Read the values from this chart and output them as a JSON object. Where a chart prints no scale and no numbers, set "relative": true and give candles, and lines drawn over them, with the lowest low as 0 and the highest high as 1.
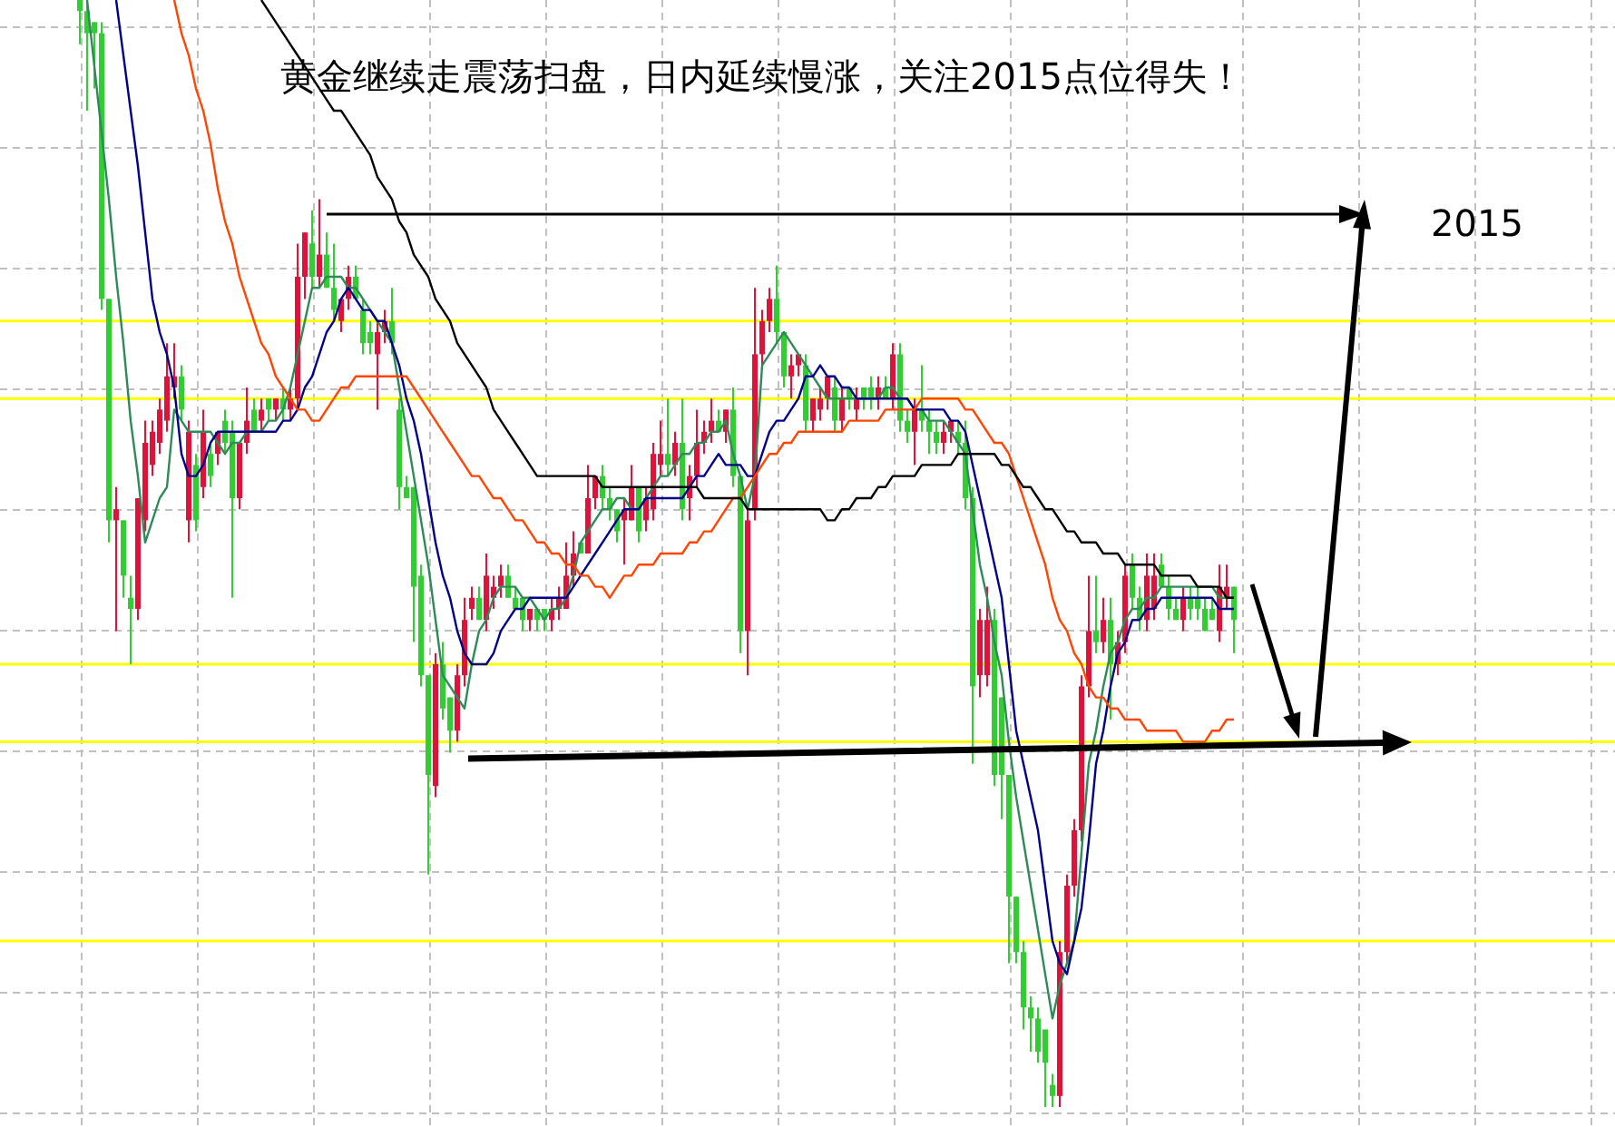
{
  "chart_data": {
    "type": "candlestick",
    "relative": true,
    "grid": true,
    "title": "黄金继续走震荡扫盘，日内延续慢涨，关注2015点位得失！",
    "annotations": [
      "2015"
    ],
    "colors": [
      "#32cd32",
      "#32cd32",
      "#32cd32",
      "#32cd32",
      "#32cd32",
      "#dc143c",
      "#32cd32",
      "#32cd32",
      "#dc143c",
      "#dc143c",
      "#dc143c",
      "#dc143c",
      "#dc143c",
      "#dc143c",
      "#32cd32",
      "#dc143c",
      "#32cd32",
      "#dc143c",
      "#32cd32",
      "#dc143c",
      "#32cd32",
      "#32cd32",
      "#dc143c",
      "#dc143c",
      "#32cd32",
      "#dc143c",
      "#32cd32",
      "#dc143c",
      "#32cd32",
      "#dc143c",
      "#dc143c",
      "#dc143c",
      "#32cd32",
      "#dc143c",
      "#32cd32",
      "#32cd32",
      "#dc143c",
      "#dc143c",
      "#32cd32",
      "#32cd32",
      "#32cd32",
      "#dc143c",
      "#dc143c",
      "#32cd32",
      "#32cd32",
      "#32cd32",
      "#32cd32",
      "#32cd32",
      "#32cd32",
      "#dc143c",
      "#32cd32",
      "#32cd32",
      "#dc143c",
      "#dc143c",
      "#dc143c",
      "#32cd32",
      "#dc143c",
      "#dc143c",
      "#dc143c",
      "#32cd32",
      "#32cd32",
      "#32cd32",
      "#dc143c",
      "#32cd32",
      "#32cd32",
      "#dc143c",
      "#dc143c",
      "#dc143c",
      "#dc143c",
      "#32cd32",
      "#dc143c",
      "#dc143c",
      "#32cd32",
      "#32cd32",
      "#32cd32",
      "#dc143c",
      "#dc143c",
      "#32cd32",
      "#dc143c",
      "#dc143c",
      "#dc143c",
      "#32cd32",
      "#dc143c",
      "#32cd32",
      "#dc143c",
      "#dc143c",
      "#dc143c",
      "#dc143c",
      "#32cd32",
      "#dc143c",
      "#32cd32",
      "#32cd32",
      "#dc143c",
      "#dc143c",
      "#dc143c",
      "#dc143c",
      "#32cd32",
      "#32cd32",
      "#dc143c",
      "#dc143c",
      "#32cd32",
      "#dc143c",
      "#dc143c",
      "#dc143c",
      "#32cd32",
      "#dc143c",
      "#32cd32",
      "#dc143c",
      "#32cd32",
      "#32cd32",
      "#dc143c",
      "#32cd32",
      "#dc143c",
      "#32cd32",
      "#32cd32",
      "#dc143c",
      "#32cd32",
      "#32cd32",
      "#32cd32",
      "#dc143c",
      "#dc143c",
      "#32cd32",
      "#32cd32",
      "#32cd32",
      "#dc143c",
      "#dc143c",
      "#32cd32",
      "#32cd32",
      "#32cd32",
      "#32cd32",
      "#32cd32",
      "#32cd32",
      "#32cd32",
      "#32cd32",
      "#32cd32",
      "#dc143c",
      "#dc143c",
      "#dc143c",
      "#dc143c",
      "#dc143c",
      "#32cd32",
      "#dc143c",
      "#32cd32",
      "#dc143c",
      "#dc143c",
      "#32cd32",
      "#32cd32",
      "#dc143c",
      "#dc143c",
      "#32cd32",
      "#32cd32",
      "#32cd32",
      "#dc143c",
      "#32cd32",
      "#32cd32",
      "#32cd32",
      "#32cd32",
      "#dc143c",
      "#dc143c",
      "#32cd32"
    ],
    "categories": [
      null,
      null,
      null,
      null,
      null,
      null,
      null,
      null,
      null,
      null,
      null,
      null,
      null,
      null,
      null,
      null,
      null,
      null,
      null,
      null,
      null,
      null,
      null,
      null,
      null,
      null,
      null,
      null,
      null,
      null,
      null,
      null,
      null,
      null,
      null,
      null,
      null,
      null,
      null,
      null,
      null,
      null,
      null,
      null,
      null,
      null,
      null,
      null,
      null,
      null,
      null,
      null,
      null,
      null,
      null,
      null,
      null,
      null,
      null,
      null,
      null,
      null,
      null,
      null,
      null,
      null,
      null,
      null,
      null,
      null,
      null,
      null,
      null,
      null,
      null,
      null,
      null,
      null,
      null,
      null,
      null,
      null,
      null,
      null,
      null,
      null,
      null,
      null,
      null,
      null,
      null,
      null,
      null,
      null,
      null,
      null,
      null,
      null,
      null,
      null,
      null,
      null,
      null,
      null,
      null,
      null,
      null,
      null,
      null,
      null,
      null,
      null,
      null,
      null,
      null,
      null,
      null,
      null,
      null,
      null,
      null,
      null,
      null,
      null,
      null,
      null,
      null,
      null,
      null,
      null,
      null,
      null,
      null,
      null,
      null,
      null,
      null,
      null,
      null,
      null,
      null,
      null,
      null,
      null,
      null,
      null,
      null,
      null,
      null,
      null,
      null,
      null,
      null,
      null,
      null,
      null,
      null,
      null,
      null,
      null
    ],
    "ohlc": [
      [
        1.0,
        1.0,
        0.96,
        0.99
      ],
      [
        0.99,
        1.0,
        0.9,
        0.97
      ],
      [
        0.98,
        0.98,
        0.92,
        0.97
      ],
      [
        0.97,
        0.98,
        0.72,
        0.73
      ],
      [
        0.73,
        0.73,
        0.51,
        0.53
      ],
      [
        0.53,
        0.56,
        0.43,
        0.54
      ],
      [
        0.53,
        0.53,
        0.46,
        0.48
      ],
      [
        0.46,
        0.48,
        0.4,
        0.45
      ],
      [
        0.45,
        0.55,
        0.44,
        0.55
      ],
      [
        0.53,
        0.62,
        0.52,
        0.6
      ],
      [
        0.58,
        0.62,
        0.57,
        0.61
      ],
      [
        0.6,
        0.64,
        0.59,
        0.63
      ],
      [
        0.62,
        0.69,
        0.61,
        0.66
      ],
      [
        0.65,
        0.69,
        0.64,
        0.66
      ],
      [
        0.66,
        0.67,
        0.62,
        0.63
      ],
      [
        0.53,
        0.62,
        0.51,
        0.61
      ],
      [
        0.58,
        0.59,
        0.52,
        0.53
      ],
      [
        0.56,
        0.63,
        0.55,
        0.61
      ],
      [
        0.59,
        0.6,
        0.56,
        0.57
      ],
      [
        0.59,
        0.61,
        0.58,
        0.61
      ],
      [
        0.62,
        0.63,
        0.59,
        0.6
      ],
      [
        0.61,
        0.62,
        0.46,
        0.55
      ],
      [
        0.55,
        0.6,
        0.54,
        0.6
      ],
      [
        0.6,
        0.65,
        0.59,
        0.62
      ],
      [
        0.63,
        0.64,
        0.61,
        0.61
      ],
      [
        0.62,
        0.64,
        0.61,
        0.63
      ],
      [
        0.64,
        0.64,
        0.62,
        0.63
      ],
      [
        0.63,
        0.64,
        0.62,
        0.64
      ],
      [
        0.64,
        0.65,
        0.62,
        0.63
      ],
      [
        0.63,
        0.65,
        0.62,
        0.64
      ],
      [
        0.64,
        0.78,
        0.63,
        0.75
      ],
      [
        0.75,
        0.79,
        0.73,
        0.79
      ],
      [
        0.78,
        0.81,
        0.74,
        0.75
      ],
      [
        0.75,
        0.82,
        0.74,
        0.77
      ],
      [
        0.77,
        0.79,
        0.74,
        0.74
      ],
      [
        0.74,
        0.78,
        0.71,
        0.72
      ],
      [
        0.71,
        0.73,
        0.7,
        0.73
      ],
      [
        0.73,
        0.76,
        0.72,
        0.75
      ],
      [
        0.75,
        0.76,
        0.73,
        0.73
      ],
      [
        0.72,
        0.73,
        0.68,
        0.69
      ],
      [
        0.7,
        0.71,
        0.68,
        0.69
      ],
      [
        0.68,
        0.71,
        0.63,
        0.7
      ],
      [
        0.7,
        0.72,
        0.69,
        0.71
      ],
      [
        0.71,
        0.74,
        0.68,
        0.69
      ],
      [
        0.63,
        0.64,
        0.54,
        0.56
      ],
      [
        0.56,
        0.57,
        0.55,
        0.55
      ],
      [
        0.56,
        0.56,
        0.42,
        0.47
      ],
      [
        0.48,
        0.49,
        0.38,
        0.39
      ],
      [
        0.39,
        0.39,
        0.21,
        0.3
      ],
      [
        0.29,
        0.41,
        0.28,
        0.4
      ],
      [
        0.4,
        0.42,
        0.35,
        0.36
      ],
      [
        0.37,
        0.37,
        0.32,
        0.34
      ],
      [
        0.34,
        0.4,
        0.33,
        0.39
      ],
      [
        0.39,
        0.46,
        0.38,
        0.44
      ],
      [
        0.45,
        0.47,
        0.44,
        0.46
      ],
      [
        0.46,
        0.47,
        0.44,
        0.44
      ],
      [
        0.44,
        0.5,
        0.43,
        0.48
      ],
      [
        0.46,
        0.48,
        0.45,
        0.47
      ],
      [
        0.47,
        0.49,
        0.46,
        0.48
      ],
      [
        0.48,
        0.49,
        0.46,
        0.46
      ],
      [
        0.46,
        0.47,
        0.45,
        0.45
      ],
      [
        0.46,
        0.46,
        0.43,
        0.44
      ],
      [
        0.44,
        0.45,
        0.43,
        0.45
      ],
      [
        0.45,
        0.45,
        0.43,
        0.44
      ],
      [
        0.45,
        0.45,
        0.43,
        0.44
      ],
      [
        0.44,
        0.46,
        0.43,
        0.45
      ],
      [
        0.45,
        0.47,
        0.44,
        0.46
      ],
      [
        0.45,
        0.51,
        0.45,
        0.48
      ],
      [
        0.48,
        0.52,
        0.47,
        0.5
      ],
      [
        0.51,
        0.51,
        0.5,
        0.5
      ],
      [
        0.5,
        0.58,
        0.5,
        0.55
      ],
      [
        0.55,
        0.57,
        0.54,
        0.57
      ],
      [
        0.57,
        0.58,
        0.54,
        0.55
      ],
      [
        0.55,
        0.56,
        0.53,
        0.54
      ],
      [
        0.54,
        0.54,
        0.51,
        0.52
      ],
      [
        0.53,
        0.55,
        0.49,
        0.54
      ],
      [
        0.53,
        0.58,
        0.53,
        0.56
      ],
      [
        0.56,
        0.56,
        0.51,
        0.52
      ],
      [
        0.53,
        0.56,
        0.52,
        0.55
      ],
      [
        0.54,
        0.6,
        0.53,
        0.59
      ],
      [
        0.58,
        0.62,
        0.57,
        0.59
      ],
      [
        0.59,
        0.64,
        0.57,
        0.58
      ],
      [
        0.58,
        0.61,
        0.57,
        0.6
      ],
      [
        0.6,
        0.64,
        0.53,
        0.54
      ],
      [
        0.55,
        0.58,
        0.53,
        0.57
      ],
      [
        0.57,
        0.63,
        0.56,
        0.6
      ],
      [
        0.6,
        0.62,
        0.59,
        0.61
      ],
      [
        0.61,
        0.64,
        0.6,
        0.62
      ],
      [
        0.62,
        0.63,
        0.61,
        0.61
      ],
      [
        0.61,
        0.63,
        0.6,
        0.63
      ],
      [
        0.63,
        0.65,
        0.56,
        0.57
      ],
      [
        0.57,
        0.57,
        0.41,
        0.43
      ],
      [
        0.43,
        0.54,
        0.39,
        0.53
      ],
      [
        0.54,
        0.74,
        0.53,
        0.68
      ],
      [
        0.68,
        0.72,
        0.67,
        0.71
      ],
      [
        0.71,
        0.74,
        0.7,
        0.73
      ],
      [
        0.73,
        0.76,
        0.69,
        0.7
      ],
      [
        0.7,
        0.7,
        0.65,
        0.66
      ],
      [
        0.66,
        0.68,
        0.64,
        0.67
      ],
      [
        0.67,
        0.68,
        0.66,
        0.68
      ],
      [
        0.67,
        0.68,
        0.61,
        0.62
      ],
      [
        0.62,
        0.64,
        0.61,
        0.64
      ],
      [
        0.63,
        0.65,
        0.62,
        0.64
      ],
      [
        0.64,
        0.66,
        0.63,
        0.66
      ],
      [
        0.65,
        0.66,
        0.61,
        0.62
      ],
      [
        0.62,
        0.65,
        0.61,
        0.64
      ],
      [
        0.65,
        0.65,
        0.63,
        0.64
      ],
      [
        0.63,
        0.65,
        0.62,
        0.64
      ],
      [
        0.65,
        0.65,
        0.63,
        0.64
      ],
      [
        0.65,
        0.66,
        0.63,
        0.64
      ],
      [
        0.64,
        0.66,
        0.63,
        0.65
      ],
      [
        0.65,
        0.66,
        0.64,
        0.64
      ],
      [
        0.64,
        0.69,
        0.63,
        0.68
      ],
      [
        0.68,
        0.69,
        0.61,
        0.62
      ],
      [
        0.62,
        0.63,
        0.6,
        0.61
      ],
      [
        0.61,
        0.64,
        0.58,
        0.63
      ],
      [
        0.63,
        0.67,
        0.61,
        0.62
      ],
      [
        0.62,
        0.63,
        0.59,
        0.61
      ],
      [
        0.61,
        0.62,
        0.59,
        0.6
      ],
      [
        0.6,
        0.62,
        0.59,
        0.61
      ],
      [
        0.61,
        0.62,
        0.6,
        0.62
      ],
      [
        0.61,
        0.62,
        0.59,
        0.6
      ],
      [
        0.6,
        0.62,
        0.54,
        0.55
      ],
      [
        0.55,
        0.56,
        0.31,
        0.38
      ],
      [
        0.39,
        0.45,
        0.37,
        0.44
      ],
      [
        0.39,
        0.47,
        0.38,
        0.44
      ],
      [
        0.44,
        0.45,
        0.29,
        0.3
      ],
      [
        0.37,
        0.37,
        0.26,
        0.3
      ],
      [
        0.3,
        0.3,
        0.13,
        0.19
      ],
      [
        0.19,
        0.19,
        0.13,
        0.14
      ],
      [
        0.14,
        0.15,
        0.07,
        0.09
      ],
      [
        0.09,
        0.1,
        0.05,
        0.08
      ],
      [
        0.08,
        0.09,
        0.04,
        0.05
      ],
      [
        0.07,
        0.07,
        0.0,
        0.04
      ],
      [
        0.02,
        0.03,
        0.0,
        0.01
      ],
      [
        0.01,
        0.15,
        0.0,
        0.14
      ],
      [
        0.14,
        0.21,
        0.13,
        0.2
      ],
      [
        0.2,
        0.26,
        0.19,
        0.25
      ],
      [
        0.25,
        0.39,
        0.24,
        0.38
      ],
      [
        0.38,
        0.48,
        0.37,
        0.43
      ],
      [
        0.43,
        0.48,
        0.41,
        0.42
      ],
      [
        0.42,
        0.46,
        0.41,
        0.44
      ],
      [
        0.44,
        0.46,
        0.35,
        0.4
      ],
      [
        0.4,
        0.43,
        0.39,
        0.42
      ],
      [
        0.42,
        0.49,
        0.41,
        0.48
      ],
      [
        0.49,
        0.5,
        0.45,
        0.46
      ],
      [
        0.46,
        0.47,
        0.43,
        0.44
      ],
      [
        0.44,
        0.5,
        0.43,
        0.48
      ],
      [
        0.45,
        0.5,
        0.44,
        0.48
      ],
      [
        0.49,
        0.5,
        0.47,
        0.47
      ],
      [
        0.47,
        0.48,
        0.44,
        0.45
      ],
      [
        0.45,
        0.46,
        0.44,
        0.44
      ],
      [
        0.44,
        0.47,
        0.43,
        0.46
      ],
      [
        0.46,
        0.47,
        0.44,
        0.45
      ],
      [
        0.46,
        0.47,
        0.44,
        0.45
      ],
      [
        0.45,
        0.46,
        0.43,
        0.43
      ],
      [
        0.45,
        0.46,
        0.44,
        0.44
      ],
      [
        0.43,
        0.49,
        0.42,
        0.47
      ],
      [
        0.46,
        0.49,
        0.45,
        0.47
      ],
      [
        0.47,
        0.47,
        0.41,
        0.44
      ]
    ],
    "series": [
      {
        "type": "line",
        "color": "#2e8b57",
        "values": [
          null,
          1.0,
          0.94,
          0.88,
          0.82,
          0.75,
          0.69,
          0.62,
          0.57,
          0.51,
          0.53,
          0.55,
          0.56,
          0.63,
          0.62,
          0.61,
          0.61,
          0.61,
          0.61,
          0.6,
          0.59,
          0.6,
          0.6,
          0.61,
          0.61,
          0.61,
          0.62,
          0.62,
          0.63,
          0.65,
          0.68,
          0.71,
          0.74,
          0.74,
          0.75,
          0.75,
          0.75,
          0.74,
          0.74,
          0.73,
          0.72,
          0.71,
          0.7,
          0.69,
          0.65,
          0.61,
          0.57,
          0.53,
          0.49,
          0.44,
          0.39,
          0.38,
          0.37,
          0.36,
          0.4,
          0.43,
          0.44,
          0.46,
          0.47,
          0.47,
          0.47,
          0.46,
          0.46,
          0.45,
          0.44,
          0.45,
          0.45,
          0.46,
          0.48,
          0.51,
          0.52,
          0.53,
          0.54,
          0.54,
          0.55,
          0.55,
          0.54,
          0.54,
          0.55,
          0.56,
          0.57,
          0.57,
          0.58,
          0.59,
          0.59,
          0.6,
          0.6,
          0.61,
          0.61,
          0.62,
          0.59,
          0.57,
          0.54,
          0.57,
          0.67,
          0.68,
          0.69,
          0.7,
          0.69,
          0.68,
          0.67,
          0.66,
          0.65,
          0.64,
          0.64,
          0.64,
          0.64,
          0.64,
          0.64,
          0.64,
          0.64,
          0.65,
          0.65,
          0.64,
          0.64,
          0.63,
          0.63,
          0.62,
          0.62,
          0.62,
          0.61,
          0.6,
          0.59,
          0.54,
          0.49,
          0.46,
          0.42,
          0.39,
          0.33,
          0.28,
          0.24,
          0.2,
          0.16,
          0.12,
          0.08,
          0.11,
          0.13,
          0.15,
          0.23,
          0.31,
          0.34,
          0.38,
          0.41,
          0.42,
          0.44,
          0.45,
          0.45,
          0.46,
          0.46,
          0.47,
          0.47,
          0.47,
          0.47,
          0.47,
          0.47,
          0.47,
          0.47,
          0.46,
          0.46,
          0.46
        ]
      },
      {
        "type": "line",
        "color": "#00008b",
        "values": [
          null,
          null,
          null,
          null,
          null,
          1.0,
          0.95,
          0.9,
          0.85,
          0.79,
          0.73,
          0.7,
          0.68,
          0.65,
          0.59,
          0.57,
          0.57,
          0.58,
          0.6,
          0.61,
          0.61,
          0.61,
          0.61,
          0.61,
          0.61,
          0.61,
          0.61,
          0.61,
          0.62,
          0.62,
          0.63,
          0.65,
          0.66,
          0.68,
          0.7,
          0.71,
          0.73,
          0.74,
          0.73,
          0.72,
          0.72,
          0.71,
          0.71,
          0.69,
          0.67,
          0.64,
          0.62,
          0.59,
          0.55,
          0.51,
          0.48,
          0.46,
          0.43,
          0.41,
          0.4,
          0.4,
          0.4,
          0.41,
          0.43,
          0.44,
          0.45,
          0.45,
          0.46,
          0.46,
          0.46,
          0.46,
          0.46,
          0.46,
          0.47,
          0.48,
          0.49,
          0.5,
          0.51,
          0.52,
          0.53,
          0.54,
          0.54,
          0.54,
          0.55,
          0.55,
          0.55,
          0.55,
          0.55,
          0.55,
          0.56,
          0.57,
          0.57,
          0.58,
          0.59,
          0.58,
          0.58,
          0.58,
          0.57,
          0.57,
          0.59,
          0.61,
          0.62,
          0.62,
          0.63,
          0.64,
          0.66,
          0.66,
          0.67,
          0.66,
          0.66,
          0.65,
          0.65,
          0.64,
          0.64,
          0.64,
          0.64,
          0.64,
          0.64,
          0.64,
          0.64,
          0.63,
          0.63,
          0.63,
          0.63,
          0.63,
          0.62,
          0.62,
          0.61,
          0.58,
          0.55,
          0.52,
          0.49,
          0.46,
          0.4,
          0.34,
          0.31,
          0.28,
          0.25,
          0.2,
          0.15,
          0.13,
          0.12,
          0.15,
          0.18,
          0.24,
          0.31,
          0.34,
          0.38,
          0.41,
          0.42,
          0.44,
          0.44,
          0.45,
          0.45,
          0.46,
          0.46,
          0.46,
          0.46,
          0.46,
          0.46,
          0.46,
          0.46,
          0.45,
          0.45,
          0.45
        ]
      },
      {
        "type": "line",
        "color": "#ff4500",
        "values": [
          null,
          null,
          null,
          null,
          null,
          null,
          null,
          null,
          null,
          null,
          null,
          null,
          null,
          1.0,
          0.97,
          0.95,
          0.92,
          0.9,
          0.87,
          0.83,
          0.8,
          0.78,
          0.75,
          0.73,
          0.71,
          0.69,
          0.68,
          0.66,
          0.65,
          0.64,
          0.63,
          0.63,
          0.62,
          0.62,
          0.63,
          0.64,
          0.65,
          0.65,
          0.66,
          0.66,
          0.66,
          0.66,
          0.66,
          0.66,
          0.66,
          0.66,
          0.65,
          0.64,
          0.63,
          0.62,
          0.61,
          0.6,
          0.59,
          0.58,
          0.57,
          0.57,
          0.56,
          0.55,
          0.55,
          0.54,
          0.53,
          0.53,
          0.52,
          0.51,
          0.51,
          0.5,
          0.5,
          0.49,
          0.49,
          0.48,
          0.48,
          0.47,
          0.47,
          0.46,
          0.47,
          0.48,
          0.48,
          0.49,
          0.49,
          0.49,
          0.5,
          0.5,
          0.5,
          0.5,
          0.51,
          0.51,
          0.52,
          0.52,
          0.53,
          0.54,
          0.55,
          0.55,
          0.56,
          0.57,
          0.58,
          0.59,
          0.59,
          0.6,
          0.6,
          0.61,
          0.61,
          0.61,
          0.61,
          0.61,
          0.61,
          0.61,
          0.62,
          0.62,
          0.62,
          0.62,
          0.62,
          0.63,
          0.63,
          0.63,
          0.63,
          0.63,
          0.64,
          0.64,
          0.64,
          0.64,
          0.64,
          0.64,
          0.63,
          0.63,
          0.62,
          0.61,
          0.6,
          0.6,
          0.59,
          0.57,
          0.55,
          0.53,
          0.51,
          0.49,
          0.46,
          0.44,
          0.43,
          0.41,
          0.4,
          0.38,
          0.37,
          0.37,
          0.36,
          0.36,
          0.35,
          0.35,
          0.35,
          0.34,
          0.34,
          0.34,
          0.34,
          0.34,
          0.33,
          0.33,
          0.33,
          0.33,
          0.34,
          0.34,
          0.35,
          0.35
        ]
      },
      {
        "type": "line",
        "color": "#000000",
        "values": [
          null,
          null,
          null,
          null,
          null,
          null,
          null,
          null,
          null,
          null,
          null,
          null,
          null,
          null,
          null,
          null,
          null,
          null,
          null,
          null,
          null,
          null,
          null,
          null,
          null,
          1.0,
          0.99,
          0.98,
          0.97,
          0.96,
          0.95,
          0.94,
          0.93,
          0.92,
          0.91,
          0.9,
          0.9,
          0.89,
          0.88,
          0.87,
          0.86,
          0.84,
          0.83,
          0.82,
          0.8,
          0.79,
          0.77,
          0.76,
          0.75,
          0.73,
          0.72,
          0.71,
          0.69,
          0.68,
          0.67,
          0.66,
          0.65,
          0.63,
          0.62,
          0.61,
          0.6,
          0.59,
          0.58,
          0.57,
          0.57,
          0.57,
          0.57,
          0.57,
          0.57,
          0.57,
          0.57,
          0.57,
          0.56,
          0.56,
          0.56,
          0.56,
          0.56,
          0.56,
          0.56,
          0.56,
          0.56,
          0.56,
          0.56,
          0.56,
          0.56,
          0.56,
          0.55,
          0.55,
          0.55,
          0.55,
          0.55,
          0.55,
          0.54,
          0.54,
          0.54,
          0.54,
          0.54,
          0.54,
          0.54,
          0.54,
          0.54,
          0.54,
          0.54,
          0.53,
          0.53,
          0.54,
          0.54,
          0.55,
          0.55,
          0.55,
          0.56,
          0.56,
          0.57,
          0.57,
          0.57,
          0.57,
          0.58,
          0.58,
          0.58,
          0.58,
          0.58,
          0.59,
          0.59,
          0.59,
          0.59,
          0.59,
          0.59,
          0.58,
          0.58,
          0.57,
          0.56,
          0.56,
          0.55,
          0.54,
          0.54,
          0.53,
          0.52,
          0.52,
          0.51,
          0.51,
          0.51,
          0.5,
          0.5,
          0.5,
          0.49,
          0.49,
          0.49,
          0.49,
          0.49,
          0.48,
          0.48,
          0.48,
          0.48,
          0.48,
          0.47,
          0.47,
          0.47,
          0.47,
          0.46,
          0.46
        ]
      }
    ],
    "ref_lines": [
      {
        "axis": "y",
        "value": 0.71,
        "color": "#ffff00"
      },
      {
        "axis": "y",
        "value": 0.64,
        "color": "#ffff00"
      },
      {
        "axis": "y",
        "value": 0.4,
        "color": "#ffff00"
      },
      {
        "axis": "y",
        "value": 0.33,
        "color": "#ffff00"
      },
      {
        "axis": "y",
        "value": 0.15,
        "color": "#ffff00"
      }
    ]
  }
}
